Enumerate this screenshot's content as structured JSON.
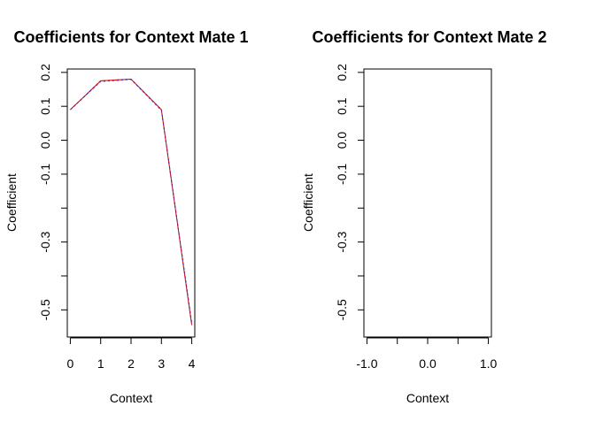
{
  "chart_data": [
    {
      "type": "line",
      "title": "Coefficients for Context Mate 1",
      "xlabel": "Context",
      "ylabel": "Coefficient",
      "xlim": [
        -0.1,
        4.1
      ],
      "ylim": [
        -0.58,
        0.21
      ],
      "x_ticks": [
        0,
        1,
        2,
        3,
        4
      ],
      "x_tick_labels": [
        "0",
        "1",
        "2",
        "3",
        "4"
      ],
      "y_ticks": [
        -0.5,
        -0.4,
        -0.3,
        -0.2,
        -0.1,
        0.0,
        0.1,
        0.2
      ],
      "y_tick_labels": [
        "-0.5",
        "",
        "-0.3",
        "",
        "-0.1",
        "0.0",
        "0.1",
        "0.2"
      ],
      "grid": false,
      "series": [
        {
          "color": "#000000",
          "dash": "3,2",
          "x": [
            0,
            1,
            2,
            3,
            4
          ],
          "y": [
            0.09,
            0.175,
            0.18,
            0.09,
            -0.54
          ]
        },
        {
          "color": "#e00000",
          "dash": "",
          "x": [
            0,
            1,
            2,
            3,
            4
          ],
          "y": [
            0.09,
            0.175,
            0.18,
            0.09,
            -0.545
          ]
        },
        {
          "color": "#3a3ad0",
          "dash": "2,3",
          "x": [
            0,
            1,
            2,
            3,
            4
          ],
          "y": [
            0.09,
            0.173,
            0.179,
            0.088,
            -0.54
          ]
        }
      ]
    },
    {
      "type": "line",
      "title": "Coefficients for Context Mate 2",
      "xlabel": "Context",
      "ylabel": "Coefficient",
      "xlim": [
        -1.05,
        1.05
      ],
      "ylim": [
        -0.58,
        0.21
      ],
      "x_ticks": [
        -1.0,
        -0.5,
        0.0,
        0.5,
        1.0
      ],
      "x_tick_labels": [
        "-1.0",
        "",
        "0.0",
        "",
        "1.0"
      ],
      "y_ticks": [
        -0.5,
        -0.4,
        -0.3,
        -0.2,
        -0.1,
        0.0,
        0.1,
        0.2
      ],
      "y_tick_labels": [
        "-0.5",
        "",
        "-0.3",
        "",
        "-0.1",
        "0.0",
        "0.1",
        "0.2"
      ],
      "grid": false,
      "series": []
    }
  ]
}
